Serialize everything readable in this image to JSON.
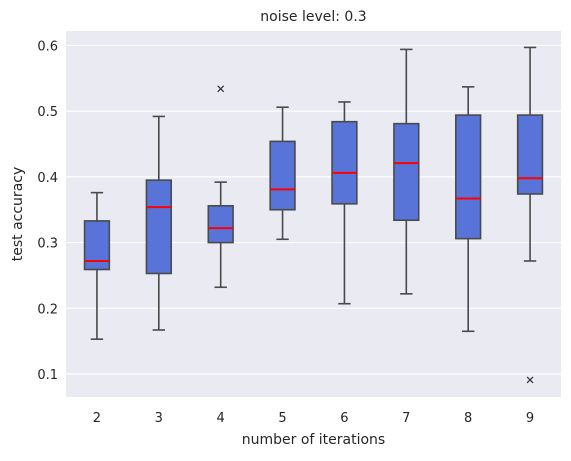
{
  "chart_data": {
    "type": "box",
    "title": "noise level: 0.3",
    "xlabel": "number of iterations",
    "ylabel": "test accuracy",
    "categories": [
      "2",
      "3",
      "4",
      "5",
      "6",
      "7",
      "8",
      "9"
    ],
    "ylim": [
      0.065,
      0.622
    ],
    "yticks": [
      0.1,
      0.2,
      0.3,
      0.4,
      0.5,
      0.6
    ],
    "ytick_labels": [
      "0.1",
      "0.2",
      "0.3",
      "0.4",
      "0.5",
      "0.6"
    ],
    "grid": true,
    "boxes": [
      {
        "category": "2",
        "whislo": 0.153,
        "q1": 0.259,
        "median": 0.272,
        "q3": 0.333,
        "whishi": 0.376,
        "fliers": []
      },
      {
        "category": "3",
        "whislo": 0.167,
        "q1": 0.253,
        "median": 0.354,
        "q3": 0.395,
        "whishi": 0.492,
        "fliers": []
      },
      {
        "category": "4",
        "whislo": 0.232,
        "q1": 0.3,
        "median": 0.322,
        "q3": 0.356,
        "whishi": 0.392,
        "fliers": [
          0.534
        ]
      },
      {
        "category": "5",
        "whislo": 0.305,
        "q1": 0.35,
        "median": 0.381,
        "q3": 0.454,
        "whishi": 0.506,
        "fliers": []
      },
      {
        "category": "6",
        "whislo": 0.207,
        "q1": 0.359,
        "median": 0.406,
        "q3": 0.484,
        "whishi": 0.514,
        "fliers": []
      },
      {
        "category": "7",
        "whislo": 0.222,
        "q1": 0.334,
        "median": 0.421,
        "q3": 0.481,
        "whishi": 0.594,
        "fliers": []
      },
      {
        "category": "8",
        "whislo": 0.165,
        "q1": 0.306,
        "median": 0.367,
        "q3": 0.494,
        "whishi": 0.537,
        "fliers": []
      },
      {
        "category": "9",
        "whislo": 0.272,
        "q1": 0.374,
        "median": 0.398,
        "q3": 0.494,
        "whishi": 0.597,
        "fliers": [
          0.091
        ]
      }
    ],
    "colors": {
      "background": "#eaeaf2",
      "grid": "#ffffff",
      "box_fill": "#5874d8",
      "box_edge": "#4a4a4a",
      "median": "#ff0000",
      "whisker": "#4a4a4a",
      "text": "#262626"
    }
  }
}
